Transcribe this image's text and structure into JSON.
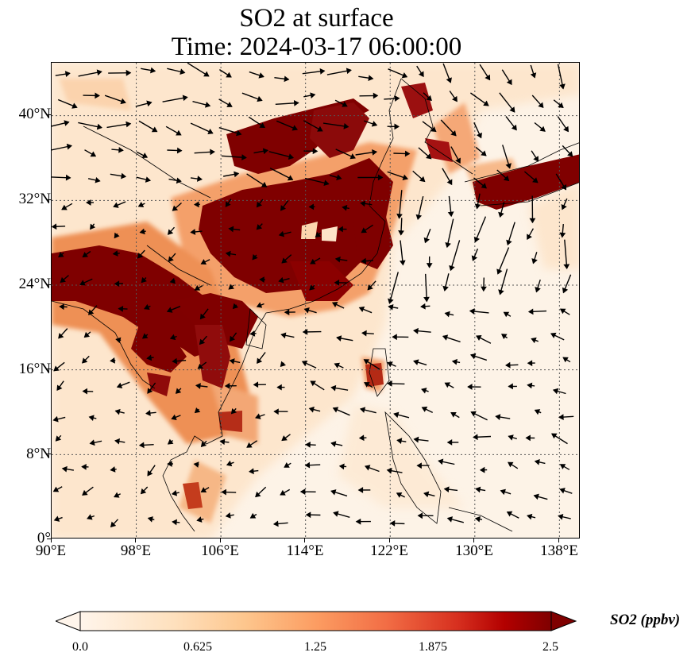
{
  "title": {
    "line1": "SO2 at surface",
    "line2": "Time: 2024-03-17 06:00:00"
  },
  "map": {
    "region": "East and Southeast Asia",
    "lon_range": [
      90,
      140
    ],
    "lat_range": [
      0,
      45
    ],
    "lon_ticks": [
      "90°E",
      "98°E",
      "106°E",
      "114°E",
      "122°E",
      "130°E",
      "138°E"
    ],
    "lat_ticks": [
      "0°",
      "8°N",
      "16°N",
      "24°N",
      "32°N",
      "40°N"
    ],
    "gridlines": "dotted",
    "overlay": "wind vectors (black arrows)",
    "colors": {
      "low": "#fff5eb",
      "mid": "#fc8d59",
      "high": "#7f0000"
    }
  },
  "colorbar": {
    "label": "SO2 (ppbv)",
    "ticks": [
      "0.0",
      "0.625",
      "1.25",
      "1.875",
      "2.5"
    ],
    "range": [
      0,
      2.5
    ],
    "extend": "both"
  }
}
